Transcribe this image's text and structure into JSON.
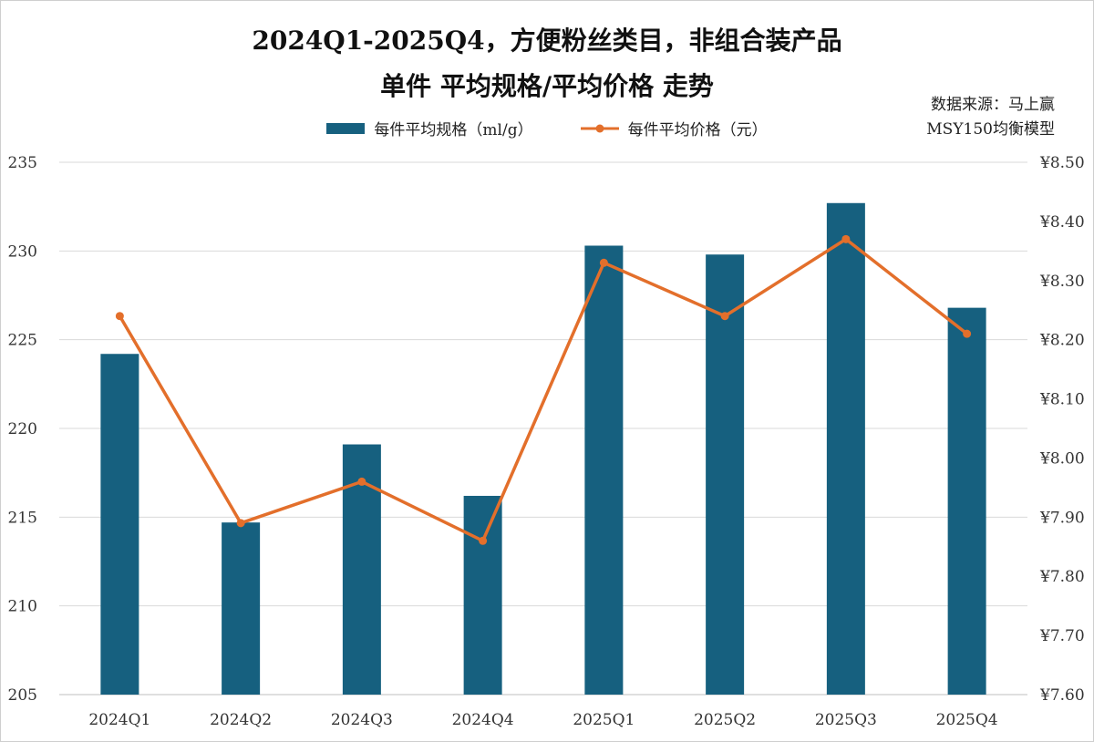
{
  "header": {
    "title_line1": "2024Q1-2025Q4，方便粉丝类目，非组合装产品",
    "title_line2": "单件 平均规格/平均价格 走势",
    "source_line1": "数据来源：马上赢",
    "source_line2": "MSY150均衡模型"
  },
  "colors": {
    "bar": "#16607f",
    "line": "#e36f2b",
    "grid": "#d9d9d9"
  },
  "chart_data": {
    "type": "bar",
    "categories": [
      "2024Q1",
      "2024Q2",
      "2024Q3",
      "2024Q4",
      "2025Q1",
      "2025Q2",
      "2025Q3",
      "2025Q4"
    ],
    "series": [
      {
        "name": "每件平均规格（ml/g）",
        "type": "bar",
        "axis": "left",
        "values": [
          224.2,
          214.7,
          219.1,
          216.2,
          230.3,
          229.8,
          232.7,
          226.8
        ]
      },
      {
        "name": "每件平均价格（元）",
        "type": "line",
        "axis": "right",
        "values": [
          8.24,
          7.89,
          7.96,
          7.86,
          8.33,
          8.24,
          8.37,
          8.21
        ]
      }
    ],
    "y_left": {
      "min": 205,
      "max": 235,
      "ticks": [
        "205",
        "210",
        "215",
        "220",
        "225",
        "230",
        "235"
      ]
    },
    "y_right": {
      "min": 7.6,
      "max": 8.5,
      "ticks": [
        "¥7.60",
        "¥7.70",
        "¥7.80",
        "¥7.90",
        "¥8.00",
        "¥8.10",
        "¥8.20",
        "¥8.30",
        "¥8.40",
        "¥8.50"
      ]
    },
    "grid": true,
    "legend_position": "top"
  }
}
